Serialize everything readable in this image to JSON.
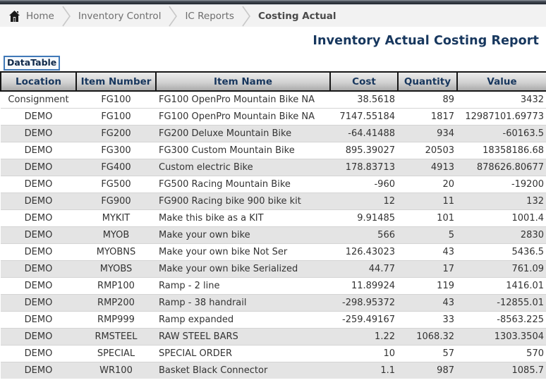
{
  "breadcrumb": {
    "items": [
      {
        "label": "Home",
        "current": false
      },
      {
        "label": "Inventory Control",
        "current": false
      },
      {
        "label": "IC Reports",
        "current": false
      },
      {
        "label": "Costing Actual",
        "current": true
      }
    ]
  },
  "page": {
    "title": "Inventory Actual Costing Report"
  },
  "datatable_label": "DataTable",
  "table": {
    "columns": [
      {
        "key": "location",
        "label": "Location"
      },
      {
        "key": "item-number",
        "label": "Item Number"
      },
      {
        "key": "item-name",
        "label": "Item Name"
      },
      {
        "key": "cost",
        "label": "Cost"
      },
      {
        "key": "quantity",
        "label": "Quantity"
      },
      {
        "key": "value",
        "label": "Value"
      }
    ],
    "rows": [
      [
        "Consignment",
        "FG100",
        "FG100 OpenPro Mountain Bike NA",
        "38.5618",
        "89",
        "3432"
      ],
      [
        "DEMO",
        "FG100",
        "FG100 OpenPro Mountain Bike NA",
        "7147.55184",
        "1817",
        "12987101.69773"
      ],
      [
        "DEMO",
        "FG200",
        "FG200 Deluxe Mountain Bike",
        "-64.41488",
        "934",
        "-60163.5"
      ],
      [
        "DEMO",
        "FG300",
        "FG300 Custom Mountain Bike",
        "895.39027",
        "20503",
        "18358186.68"
      ],
      [
        "DEMO",
        "FG400",
        "Custom electric Bike",
        "178.83713",
        "4913",
        "878626.80677"
      ],
      [
        "DEMO",
        "FG500",
        "FG500 Racing Mountain Bike",
        "-960",
        "20",
        "-19200"
      ],
      [
        "DEMO",
        "FG900",
        "FG900 Racing bike 900 bike kit",
        "12",
        "11",
        "132"
      ],
      [
        "DEMO",
        "MYKIT",
        "Make this bike as a KIT",
        "9.91485",
        "101",
        "1001.4"
      ],
      [
        "DEMO",
        "MYOB",
        "Make your own bike",
        "566",
        "5",
        "2830"
      ],
      [
        "DEMO",
        "MYOBNS",
        "Make your own bike Not Ser",
        "126.43023",
        "43",
        "5436.5"
      ],
      [
        "DEMO",
        "MYOBS",
        "Make your own bike Serialized",
        "44.77",
        "17",
        "761.09"
      ],
      [
        "DEMO",
        "RMP100",
        "Ramp - 2 line",
        "11.89924",
        "119",
        "1416.01"
      ],
      [
        "DEMO",
        "RMP200",
        "Ramp - 38 handrail",
        "-298.95372",
        "43",
        "-12855.01"
      ],
      [
        "DEMO",
        "RMP999",
        "Ramp expanded",
        "-259.49167",
        "33",
        "-8563.225"
      ],
      [
        "DEMO",
        "RMSTEEL",
        "RAW STEEL BARS",
        "1.22",
        "1068.32",
        "1303.3504"
      ],
      [
        "DEMO",
        "SPECIAL",
        "SPECIAL ORDER",
        "10",
        "57",
        "570"
      ],
      [
        "DEMO",
        "WR100",
        "Basket Black Connector",
        "1.1",
        "987",
        "1085.7"
      ]
    ]
  },
  "colors": {
    "title_text": "#17375e",
    "header_text": "#17365d",
    "header_border": "#161616",
    "stripe_row": "#e4e4e4",
    "breadcrumb_bg": "#f2f2f2",
    "datatable_border": "#4079b8",
    "topbar_dark": "#1d222a"
  }
}
